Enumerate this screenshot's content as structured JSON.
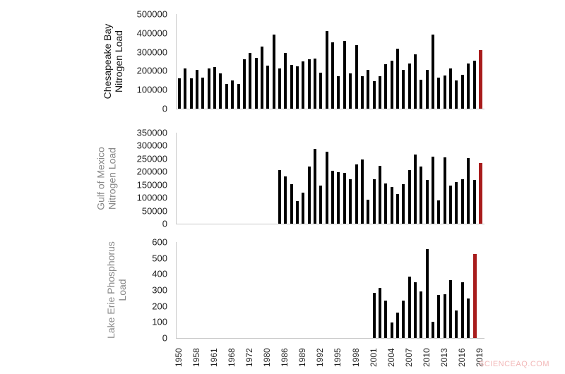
{
  "watermark": "SCIENCEAQ.COM",
  "colors": {
    "bar": "#000000",
    "highlight": "#a81c1c",
    "axis": "#c8c8c8"
  },
  "x_tick_labels": [
    "1950",
    "1958",
    "1961",
    "1968",
    "1972",
    "1980",
    "1986",
    "1989",
    "1992",
    "1995",
    "1998",
    "2001",
    "2004",
    "2007",
    "2010",
    "2013",
    "2016",
    "2019"
  ],
  "chart_data": [
    {
      "type": "bar",
      "title": "",
      "ylabel": "Chesapeake Bay Nitrogen Load",
      "xlabel": "",
      "ylim": [
        0,
        500000
      ],
      "yticks": [
        "500000",
        "400000",
        "300000",
        "200000",
        "100000",
        "0"
      ],
      "grid": false,
      "highlight_last": true,
      "start_index": 0,
      "values": [
        162000,
        212000,
        160000,
        207000,
        163000,
        212000,
        220000,
        185000,
        130000,
        148000,
        130000,
        262000,
        295000,
        270000,
        330000,
        228000,
        393000,
        213000,
        295000,
        230000,
        225000,
        250000,
        262000,
        265000,
        190000,
        410000,
        352000,
        170000,
        358000,
        186000,
        336000,
        170000,
        207000,
        145000,
        170000,
        235000,
        255000,
        318000,
        205000,
        240000,
        287000,
        153000,
        205000,
        390000,
        165000,
        175000,
        213000,
        150000,
        178000,
        238000,
        255000,
        310000
      ]
    },
    {
      "type": "bar",
      "title": "",
      "ylabel": "Gulf of Mexico Nitrogen Load",
      "xlabel": "",
      "ylim": [
        0,
        350000
      ],
      "yticks": [
        "350000",
        "300000",
        "250000",
        "200000",
        "150000",
        "100000",
        "50000",
        "0"
      ],
      "grid": false,
      "highlight_last": true,
      "start_index": 17,
      "values": [
        207000,
        183000,
        152000,
        87000,
        120000,
        219000,
        288000,
        146000,
        277000,
        203000,
        198000,
        194000,
        171000,
        228000,
        248000,
        93000,
        172000,
        222000,
        156000,
        142000,
        115000,
        152000,
        206000,
        266000,
        221000,
        167000,
        258000,
        90000,
        255000,
        147000,
        160000,
        172000,
        252000,
        167000,
        234000
      ]
    },
    {
      "type": "bar",
      "title": "",
      "ylabel": "Lake Erie Phosphorus Load",
      "xlabel": "",
      "ylim": [
        0,
        600
      ],
      "yticks": [
        "600",
        "500",
        "400",
        "300",
        "200",
        "100",
        "0"
      ],
      "grid": false,
      "highlight_last": true,
      "start_index": 33,
      "values": [
        283,
        313,
        232,
        97,
        158,
        232,
        382,
        350,
        290,
        555,
        100,
        268,
        275,
        362,
        173,
        348,
        245,
        523
      ]
    }
  ]
}
